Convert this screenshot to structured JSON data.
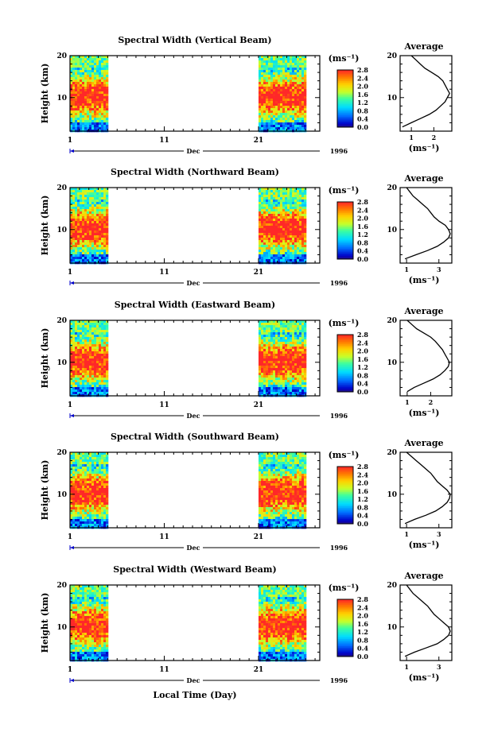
{
  "figure": {
    "xlabel": "Local Time (Day)",
    "month_label": "Dec",
    "year_label": "1996",
    "colorbar_unit": "(ms⁻¹)",
    "average_title": "Average",
    "average_xunit": "(ms⁻¹)",
    "ylabel": "Height (km)"
  },
  "chart_data": [
    {
      "type": "heatmap",
      "title": "Spectral Width (Vertical Beam)",
      "xlabel": "Local Time (Day)",
      "ylabel": "Height (km)",
      "x_ticks": [
        "1",
        "11",
        "21"
      ],
      "y_ticks": [
        "10",
        "20"
      ],
      "ylim": [
        2,
        20
      ],
      "data_day_ranges": [
        [
          1,
          4.8
        ],
        [
          21,
          26
        ]
      ],
      "colorbar_ticks": [
        "2.8",
        "2.4",
        "2.0",
        "1.6",
        "1.2",
        "0.8",
        "0.4",
        "0.0"
      ],
      "colorbar_range": [
        0,
        2.8
      ],
      "average_profile": {
        "title": "Average",
        "x_ticks": [
          "1",
          "2"
        ],
        "xlim": [
          0.5,
          2.8
        ],
        "height_km": [
          3,
          4,
          5,
          6,
          7,
          8,
          9,
          10,
          11,
          12,
          13,
          14,
          15,
          16,
          17,
          18,
          19,
          20
        ],
        "width_ms": [
          0.6,
          1.0,
          1.4,
          1.8,
          2.1,
          2.3,
          2.5,
          2.6,
          2.7,
          2.6,
          2.5,
          2.4,
          2.2,
          1.9,
          1.6,
          1.4,
          1.2,
          1.0
        ]
      }
    },
    {
      "type": "heatmap",
      "title": "Spectral Width (Northward Beam)",
      "xlabel": "Local Time (Day)",
      "ylabel": "Height (km)",
      "x_ticks": [
        "1",
        "11",
        "21"
      ],
      "y_ticks": [
        "10",
        "20"
      ],
      "ylim": [
        2,
        20
      ],
      "data_day_ranges": [
        [
          1,
          4.8
        ],
        [
          21,
          26
        ]
      ],
      "colorbar_ticks": [
        "2.8",
        "2.4",
        "2.0",
        "1.6",
        "1.2",
        "0.8",
        "0.4",
        "0.0"
      ],
      "colorbar_range": [
        0,
        2.8
      ],
      "average_profile": {
        "title": "Average",
        "x_ticks": [
          "1",
          "3"
        ],
        "xlim": [
          0.6,
          3.8
        ],
        "height_km": [
          3,
          4,
          5,
          6,
          7,
          8,
          9,
          10,
          11,
          12,
          13,
          14,
          15,
          16,
          17,
          18,
          19,
          20
        ],
        "width_ms": [
          0.9,
          1.6,
          2.3,
          2.9,
          3.3,
          3.6,
          3.7,
          3.6,
          3.4,
          3.0,
          2.7,
          2.5,
          2.3,
          2.0,
          1.7,
          1.4,
          1.2,
          1.0
        ]
      }
    },
    {
      "type": "heatmap",
      "title": "Spectral Width (Eastward Beam)",
      "xlabel": "Local Time (Day)",
      "ylabel": "Height (km)",
      "x_ticks": [
        "1",
        "11",
        "21"
      ],
      "y_ticks": [
        "10",
        "20"
      ],
      "ylim": [
        2,
        20
      ],
      "data_day_ranges": [
        [
          1,
          4.8
        ],
        [
          21,
          26
        ]
      ],
      "colorbar_ticks": [
        "2.8",
        "2.4",
        "2.0",
        "1.6",
        "1.2",
        "0.8",
        "0.4",
        "0.0"
      ],
      "colorbar_range": [
        0,
        2.8
      ],
      "average_profile": {
        "title": "Average",
        "x_ticks": [
          "1",
          "2"
        ],
        "xlim": [
          0.7,
          2.9
        ],
        "height_km": [
          3,
          4,
          5,
          6,
          7,
          8,
          9,
          10,
          11,
          12,
          13,
          14,
          15,
          16,
          17,
          18,
          19,
          20
        ],
        "width_ms": [
          1.0,
          1.3,
          1.7,
          2.1,
          2.4,
          2.6,
          2.75,
          2.8,
          2.7,
          2.6,
          2.5,
          2.35,
          2.2,
          2.0,
          1.7,
          1.4,
          1.2,
          1.0
        ]
      }
    },
    {
      "type": "heatmap",
      "title": "Spectral Width (Southward Beam)",
      "xlabel": "Local Time (Day)",
      "ylabel": "Height (km)",
      "x_ticks": [
        "1",
        "11",
        "21"
      ],
      "y_ticks": [
        "10",
        "20"
      ],
      "ylim": [
        2,
        20
      ],
      "data_day_ranges": [
        [
          1,
          4.8
        ],
        [
          21,
          26
        ]
      ],
      "colorbar_ticks": [
        "2.8",
        "2.4",
        "2.0",
        "1.6",
        "1.2",
        "0.8",
        "0.4",
        "0.0"
      ],
      "colorbar_range": [
        0,
        2.8
      ],
      "average_profile": {
        "title": "Average",
        "x_ticks": [
          "1",
          "3"
        ],
        "xlim": [
          0.6,
          3.8
        ],
        "height_km": [
          3,
          4,
          5,
          6,
          7,
          8,
          9,
          10,
          11,
          12,
          13,
          14,
          15,
          16,
          17,
          18,
          19,
          20
        ],
        "width_ms": [
          0.9,
          1.5,
          2.2,
          2.8,
          3.2,
          3.5,
          3.65,
          3.7,
          3.5,
          3.2,
          2.9,
          2.7,
          2.5,
          2.2,
          1.9,
          1.6,
          1.3,
          1.0
        ]
      }
    },
    {
      "type": "heatmap",
      "title": "Spectral Width (Westward Beam)",
      "xlabel": "Local Time (Day)",
      "ylabel": "Height (km)",
      "x_ticks": [
        "1",
        "11",
        "21"
      ],
      "y_ticks": [
        "10",
        "20"
      ],
      "ylim": [
        2,
        20
      ],
      "data_day_ranges": [
        [
          1,
          4.8
        ],
        [
          21,
          26
        ]
      ],
      "colorbar_ticks": [
        "2.8",
        "2.4",
        "2.0",
        "1.6",
        "1.2",
        "0.8",
        "0.4",
        "0.0"
      ],
      "colorbar_range": [
        0,
        2.8
      ],
      "average_profile": {
        "title": "Average",
        "x_ticks": [
          "1",
          "3"
        ],
        "xlim": [
          0.6,
          3.8
        ],
        "height_km": [
          3,
          4,
          5,
          6,
          7,
          8,
          9,
          10,
          11,
          12,
          13,
          14,
          15,
          16,
          17,
          18,
          19,
          20
        ],
        "width_ms": [
          0.9,
          1.5,
          2.2,
          2.9,
          3.3,
          3.6,
          3.7,
          3.6,
          3.3,
          3.0,
          2.7,
          2.5,
          2.3,
          2.0,
          1.7,
          1.4,
          1.2,
          1.0
        ]
      }
    }
  ]
}
